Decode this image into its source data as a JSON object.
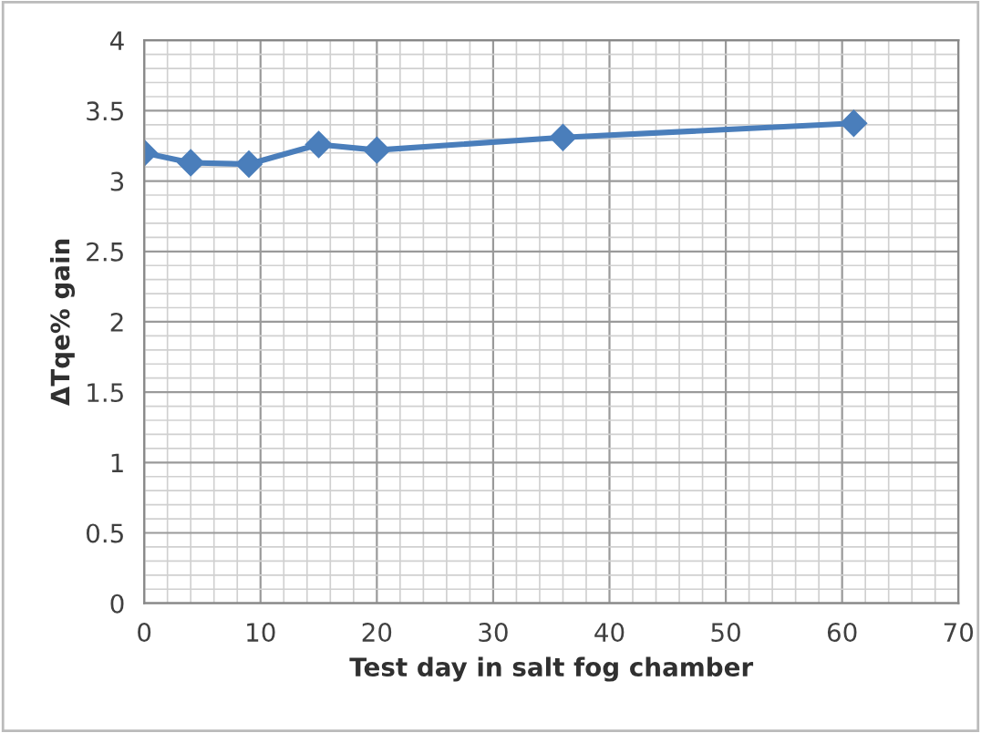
{
  "chart_data": {
    "type": "line",
    "xlabel": "Test day in salt fog chamber",
    "ylabel": "ΔTqe% gain",
    "x": [
      0,
      4,
      9,
      15,
      20,
      36,
      61
    ],
    "series": [
      {
        "color": "#4a7ebb",
        "values": [
          3.2,
          3.13,
          3.12,
          3.26,
          3.22,
          3.31,
          3.41
        ]
      }
    ],
    "xlim": [
      0,
      70
    ],
    "xticks": [
      0,
      10,
      20,
      30,
      40,
      50,
      60,
      70
    ],
    "ylim": [
      0,
      4
    ],
    "yticks": [
      0,
      0.5,
      1,
      1.5,
      2,
      2.5,
      3,
      3.5,
      4
    ],
    "grid": true,
    "marker": "diamond",
    "line_style": "solid"
  }
}
